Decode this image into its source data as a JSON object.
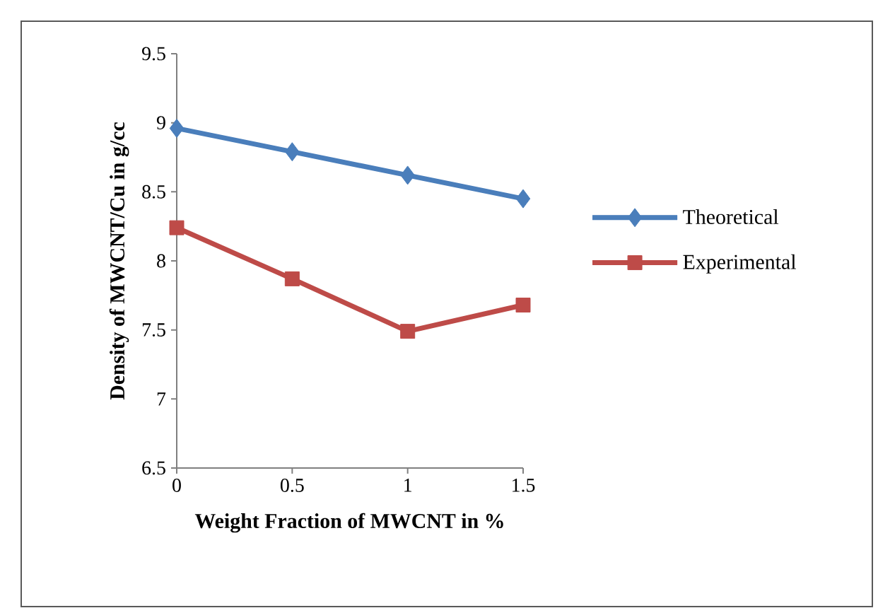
{
  "chart_data": {
    "type": "line",
    "xlabel": "Weight Fraction of MWCNT in %",
    "ylabel": "Density of MWCNT/Cu in g/cc",
    "categories": [
      "0",
      "0.5",
      "1",
      "1.5"
    ],
    "series": [
      {
        "name": "Theoretical",
        "color": "#4a7ebb",
        "marker": "diamond",
        "values": [
          8.96,
          8.79,
          8.62,
          8.45
        ]
      },
      {
        "name": "Experimental",
        "color": "#be4b48",
        "marker": "square",
        "values": [
          8.24,
          7.87,
          7.49,
          7.68
        ]
      }
    ],
    "ylim": [
      6.5,
      9.5
    ],
    "yticks": [
      6.5,
      7,
      7.5,
      8,
      8.5,
      9,
      9.5
    ],
    "legend": "right"
  }
}
